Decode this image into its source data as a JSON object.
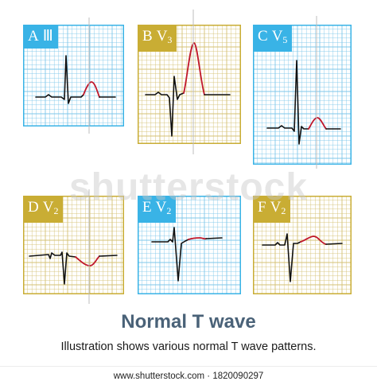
{
  "watermark": "shutterstock",
  "title": "Normal T wave",
  "subtitle": "Illustration shows various normal T wave patterns.",
  "footer": "www.shutterstock.com · 1820090297",
  "colors": {
    "blue_frame": "#39b3e6",
    "yellow_frame": "#c9ad34",
    "blue_grid": "#7fc7ea",
    "yellow_grid": "#d4c174",
    "trace": "#111111",
    "t_wave": "#c0172b"
  },
  "panels": [
    {
      "letter": "A",
      "lead": "Ⅲ",
      "sub": "",
      "theme": "blue"
    },
    {
      "letter": "B",
      "lead": "V",
      "sub": "3",
      "theme": "yellow"
    },
    {
      "letter": "C",
      "lead": "V",
      "sub": "5",
      "theme": "blue"
    },
    {
      "letter": "D",
      "lead": "V",
      "sub": "2",
      "theme": "yellow"
    },
    {
      "letter": "E",
      "lead": "V",
      "sub": "2",
      "theme": "blue"
    },
    {
      "letter": "F",
      "lead": "V",
      "sub": "2",
      "theme": "yellow"
    }
  ]
}
